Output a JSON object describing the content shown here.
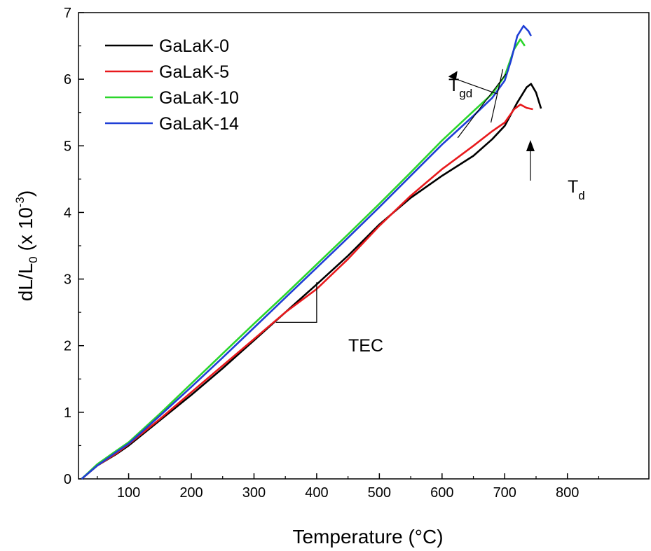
{
  "chart_data": {
    "type": "line",
    "xlabel": "Temperature (°C)",
    "ylabel": {
      "main": "dL/L",
      "sub": "0",
      "unit_open": " (x 10",
      "sup": "-3",
      "unit_close": ")"
    },
    "xlim": [
      20,
      930
    ],
    "ylim": [
      0,
      7
    ],
    "x_ticks": [
      100,
      200,
      300,
      400,
      500,
      600,
      700,
      800
    ],
    "y_ticks": [
      0,
      1,
      2,
      3,
      4,
      5,
      6,
      7
    ],
    "grid": false,
    "legend_position": "top-left",
    "series": [
      {
        "name": "GaLaK-0",
        "color": "#000000",
        "points": [
          [
            25,
            0
          ],
          [
            50,
            0.2
          ],
          [
            80,
            0.37
          ],
          [
            100,
            0.5
          ],
          [
            150,
            0.88
          ],
          [
            200,
            1.26
          ],
          [
            250,
            1.66
          ],
          [
            300,
            2.08
          ],
          [
            350,
            2.5
          ],
          [
            400,
            2.92
          ],
          [
            450,
            3.35
          ],
          [
            500,
            3.82
          ],
          [
            550,
            4.22
          ],
          [
            600,
            4.55
          ],
          [
            650,
            4.85
          ],
          [
            680,
            5.1
          ],
          [
            700,
            5.3
          ],
          [
            720,
            5.65
          ],
          [
            735,
            5.88
          ],
          [
            742,
            5.93
          ],
          [
            750,
            5.8
          ],
          [
            758,
            5.56
          ]
        ]
      },
      {
        "name": "GaLaK-5",
        "color": "#e8191c",
        "points": [
          [
            25,
            0
          ],
          [
            50,
            0.2
          ],
          [
            80,
            0.38
          ],
          [
            100,
            0.52
          ],
          [
            150,
            0.9
          ],
          [
            200,
            1.3
          ],
          [
            250,
            1.7
          ],
          [
            300,
            2.1
          ],
          [
            350,
            2.5
          ],
          [
            400,
            2.85
          ],
          [
            450,
            3.3
          ],
          [
            500,
            3.8
          ],
          [
            550,
            4.25
          ],
          [
            600,
            4.65
          ],
          [
            650,
            5.0
          ],
          [
            680,
            5.22
          ],
          [
            700,
            5.35
          ],
          [
            715,
            5.55
          ],
          [
            725,
            5.62
          ],
          [
            735,
            5.57
          ],
          [
            745,
            5.55
          ]
        ]
      },
      {
        "name": "GaLaK-10",
        "color": "#2bd62b",
        "points": [
          [
            25,
            0
          ],
          [
            50,
            0.22
          ],
          [
            80,
            0.42
          ],
          [
            100,
            0.55
          ],
          [
            150,
            0.98
          ],
          [
            200,
            1.43
          ],
          [
            250,
            1.88
          ],
          [
            300,
            2.33
          ],
          [
            350,
            2.77
          ],
          [
            400,
            3.22
          ],
          [
            450,
            3.67
          ],
          [
            500,
            4.13
          ],
          [
            550,
            4.6
          ],
          [
            600,
            5.08
          ],
          [
            650,
            5.52
          ],
          [
            680,
            5.78
          ],
          [
            700,
            6.05
          ],
          [
            715,
            6.45
          ],
          [
            725,
            6.6
          ],
          [
            732,
            6.5
          ]
        ]
      },
      {
        "name": "GaLaK-14",
        "color": "#1f3fd6",
        "points": [
          [
            25,
            0
          ],
          [
            50,
            0.2
          ],
          [
            80,
            0.4
          ],
          [
            100,
            0.53
          ],
          [
            150,
            0.95
          ],
          [
            200,
            1.38
          ],
          [
            250,
            1.82
          ],
          [
            300,
            2.27
          ],
          [
            350,
            2.72
          ],
          [
            400,
            3.17
          ],
          [
            450,
            3.62
          ],
          [
            500,
            4.08
          ],
          [
            550,
            4.55
          ],
          [
            600,
            5.02
          ],
          [
            650,
            5.45
          ],
          [
            680,
            5.72
          ],
          [
            700,
            5.98
          ],
          [
            710,
            6.28
          ],
          [
            720,
            6.65
          ],
          [
            730,
            6.8
          ],
          [
            738,
            6.72
          ],
          [
            742,
            6.65
          ]
        ]
      }
    ],
    "annotations": [
      {
        "text": "TEC"
      },
      {
        "text": "T",
        "sub": "gd"
      },
      {
        "text": "T",
        "sub": "d"
      }
    ]
  }
}
